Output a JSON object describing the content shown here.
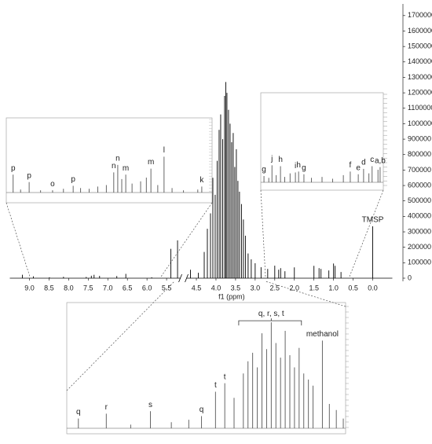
{
  "chart_data": [
    {
      "type": "stem",
      "color": "#000000",
      "xlabel": "f1 (ppm)",
      "xlim": [
        9.5,
        -0.5
      ],
      "xbreak": [
        5.15,
        4.75
      ],
      "ylim": [
        0,
        1750000
      ],
      "xticks": [
        {
          "value": 9,
          "label": "9.0"
        },
        {
          "value": 8.5,
          "label": "8.5"
        },
        {
          "value": 8,
          "label": "8.0"
        },
        {
          "value": 7.5,
          "label": "7.5"
        },
        {
          "value": 7,
          "label": "7.0"
        },
        {
          "value": 6.5,
          "label": "6.5"
        },
        {
          "value": 6,
          "label": "6.0"
        },
        {
          "value": 5.5,
          "label": "5.5"
        },
        {
          "value": 4.5,
          "label": "4.5"
        },
        {
          "value": 4,
          "label": "4.0"
        },
        {
          "value": 3.5,
          "label": "3.5"
        },
        {
          "value": 3,
          "label": "3.0"
        },
        {
          "value": 2.5,
          "label": "2.5"
        },
        {
          "value": 2,
          "label": "2.0"
        },
        {
          "value": 1.5,
          "label": "1.5"
        },
        {
          "value": 1,
          "label": "1.0"
        },
        {
          "value": 0.5,
          "label": "0.5"
        },
        {
          "value": 0,
          "label": "0.0"
        }
      ],
      "yticks": [
        0,
        100000,
        200000,
        300000,
        400000,
        500000,
        600000,
        700000,
        800000,
        900000,
        1000000,
        1100000,
        1200000,
        1300000,
        1400000,
        1500000,
        1600000,
        1700000
      ],
      "x": [
        9.18,
        8.9,
        8.49,
        8.13,
        7.55,
        7.42,
        7.35,
        7.21,
        6.77,
        6.54,
        5.88,
        5.39,
        5.22,
        4.65,
        4.45,
        4.3,
        4.22,
        4.14,
        4.08,
        4.02,
        3.97,
        3.92,
        3.88,
        3.83,
        3.78,
        3.75,
        3.72,
        3.68,
        3.64,
        3.6,
        3.56,
        3.52,
        3.48,
        3.44,
        3.4,
        3.35,
        3.3,
        3.25,
        3.18,
        3.1,
        3.0,
        2.85,
        2.68,
        2.5,
        2.4,
        2.35,
        2.24,
        2.0,
        1.5,
        1.37,
        1.32,
        1.12,
        1.0,
        0.96,
        0.81,
        0.0
      ],
      "values": [
        22000,
        12000,
        6000,
        9000,
        8000,
        16000,
        22000,
        15000,
        14000,
        28000,
        6000,
        190000,
        245000,
        55000,
        35000,
        170000,
        320000,
        420000,
        650000,
        540000,
        760000,
        960000,
        1060000,
        900000,
        1180000,
        1270000,
        1200000,
        1090000,
        1000000,
        880000,
        940000,
        720000,
        835000,
        630000,
        560000,
        480000,
        380000,
        275000,
        160000,
        122000,
        97000,
        71000,
        60000,
        81000,
        55000,
        65000,
        45000,
        70000,
        80000,
        65000,
        60000,
        50000,
        95000,
        80000,
        40000,
        336000
      ],
      "annotations": [
        {
          "text": "TMSP",
          "x": 0.0
        }
      ]
    },
    {
      "type": "stem",
      "color": "#555555",
      "xlim": [
        9.3,
        5.7
      ],
      "ylim": [
        0,
        100
      ],
      "x": [
        9.18,
        9.05,
        8.9,
        8.7,
        8.49,
        8.3,
        8.13,
        8.0,
        7.85,
        7.7,
        7.55,
        7.42,
        7.35,
        7.28,
        7.21,
        7.1,
        6.95,
        6.85,
        6.77,
        6.65,
        6.54,
        6.4,
        6.2,
        5.95,
        5.88
      ],
      "values": [
        24,
        4,
        14,
        3,
        3,
        5,
        9,
        6,
        5,
        8,
        10,
        27,
        37,
        18,
        24,
        12,
        15,
        20,
        32,
        10,
        48,
        6,
        3,
        4,
        8
      ],
      "annotations": [
        {
          "text": "p",
          "x": 9.18
        },
        {
          "text": "p",
          "x": 8.9
        },
        {
          "text": "o",
          "x": 8.49
        },
        {
          "text": "p",
          "x": 8.13
        },
        {
          "text": "n",
          "x": 7.42
        },
        {
          "text": "n",
          "x": 7.35
        },
        {
          "text": "m",
          "x": 7.21
        },
        {
          "text": "m",
          "x": 6.77
        },
        {
          "text": "l",
          "x": 6.54
        },
        {
          "text": "k",
          "x": 5.88
        }
      ]
    },
    {
      "type": "stem",
      "color": "#555555",
      "xlim": [
        3.05,
        0.75
      ],
      "ylim": [
        0,
        100
      ],
      "x": [
        2.99,
        2.9,
        2.84,
        2.76,
        2.68,
        2.6,
        2.5,
        2.4,
        2.34,
        2.24,
        2.1,
        1.9,
        1.7,
        1.5,
        1.37,
        1.22,
        1.12,
        1.02,
        0.96,
        0.85,
        0.81
      ],
      "values": [
        7,
        5,
        19,
        8,
        18,
        6,
        10,
        11,
        12,
        9,
        5,
        6,
        4,
        8,
        12,
        9,
        15,
        10,
        18,
        14,
        17
      ],
      "annotations": [
        {
          "text": "g",
          "x": 2.99
        },
        {
          "text": "j",
          "x": 2.84
        },
        {
          "text": "h",
          "x": 2.68
        },
        {
          "text": "i",
          "x": 2.4
        },
        {
          "text": "h",
          "x": 2.34
        },
        {
          "text": "g",
          "x": 2.24
        },
        {
          "text": "f",
          "x": 1.37
        },
        {
          "text": "e",
          "x": 1.22
        },
        {
          "text": "d",
          "x": 1.12
        },
        {
          "text": "c",
          "x": 0.96
        },
        {
          "text": "a,b",
          "x": 0.81
        }
      ]
    },
    {
      "type": "stem",
      "color": "#555555",
      "xlim": [
        5.5,
        3.1
      ],
      "ylim": [
        0,
        100
      ],
      "x": [
        5.4,
        5.16,
        4.95,
        4.78,
        4.6,
        4.45,
        4.34,
        4.22,
        4.14,
        4.06,
        3.98,
        3.94,
        3.9,
        3.86,
        3.82,
        3.78,
        3.74,
        3.7,
        3.66,
        3.62,
        3.58,
        3.54,
        3.5,
        3.46,
        3.42,
        3.38,
        3.3,
        3.24,
        3.18,
        3.12
      ],
      "values": [
        8,
        12,
        3,
        14,
        5,
        7,
        10,
        30,
        37,
        25,
        45,
        55,
        62,
        50,
        78,
        65,
        87,
        70,
        58,
        80,
        60,
        50,
        66,
        45,
        40,
        35,
        72,
        20,
        15,
        8
      ],
      "annotations": [
        {
          "text": "q",
          "x": 5.4
        },
        {
          "text": "r",
          "x": 5.16
        },
        {
          "text": "s",
          "x": 4.78
        },
        {
          "text": "q",
          "x": 4.34
        },
        {
          "text": "t",
          "x": 4.22
        },
        {
          "text": "t",
          "x": 4.14
        },
        {
          "text": "q, r, s, t",
          "x": 3.74,
          "bracket": [
            4.02,
            3.48
          ]
        },
        {
          "text": "methanol",
          "x": 3.3
        }
      ]
    }
  ]
}
